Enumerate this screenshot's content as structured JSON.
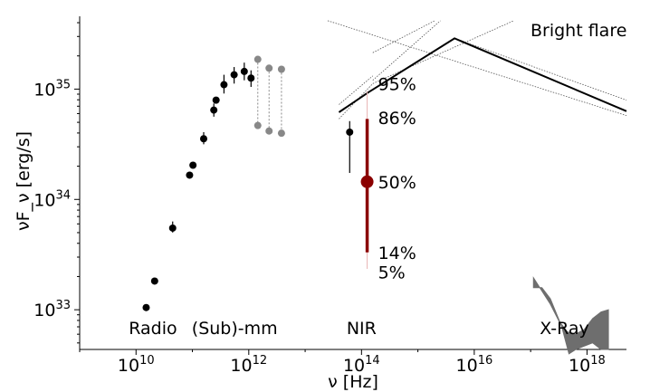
{
  "chart_data": {
    "type": "scatter",
    "xlabel": "ν [Hz]",
    "ylabel": "νF_ν [erg/s]",
    "x_scale": "log",
    "y_scale": "log",
    "xlim_log10": [
      9,
      18.7
    ],
    "ylim_log10": [
      32.64,
      35.66
    ],
    "x_ticks": [
      {
        "base": "10",
        "exp": "10",
        "v": 10
      },
      {
        "base": "10",
        "exp": "12",
        "v": 12
      },
      {
        "base": "10",
        "exp": "14",
        "v": 14
      },
      {
        "base": "10",
        "exp": "16",
        "v": 16
      },
      {
        "base": "10",
        "exp": "18",
        "v": 18
      }
    ],
    "y_ticks": [
      {
        "base": "10",
        "exp": "33",
        "v": 33
      },
      {
        "base": "10",
        "exp": "34",
        "v": 34
      },
      {
        "base": "10",
        "exp": "35",
        "v": 35
      }
    ],
    "region_labels": [
      {
        "text": "Radio",
        "x": 10.3
      },
      {
        "text": "(Sub)-mm",
        "x": 11.75
      },
      {
        "text": "NIR",
        "x": 14.0
      },
      {
        "text": "X-Ray",
        "x": 17.6
      }
    ],
    "series": [
      {
        "kind": "points",
        "color": "#000000",
        "points": [
          {
            "x": 10.18,
            "y": 33.02
          },
          {
            "x": 10.33,
            "y": 33.26
          },
          {
            "x": 10.65,
            "y": 33.74,
            "err": [
              33.7,
              33.8
            ]
          },
          {
            "x": 10.95,
            "y": 34.22
          },
          {
            "x": 11.01,
            "y": 34.31
          },
          {
            "x": 11.2,
            "y": 34.55,
            "err": [
              34.5,
              34.61
            ]
          },
          {
            "x": 11.38,
            "y": 34.81,
            "err": [
              34.75,
              34.87
            ]
          },
          {
            "x": 11.42,
            "y": 34.9
          },
          {
            "x": 11.56,
            "y": 35.04,
            "err": [
              34.96,
              35.13
            ]
          },
          {
            "x": 11.74,
            "y": 35.13,
            "err": [
              35.05,
              35.2
            ]
          },
          {
            "x": 11.92,
            "y": 35.16,
            "err": [
              35.08,
              35.24
            ]
          },
          {
            "x": 12.04,
            "y": 35.1,
            "err": [
              35.02,
              35.17
            ]
          }
        ]
      },
      {
        "kind": "ranges",
        "color": "#888888",
        "points": [
          {
            "x": 12.16,
            "low": 34.67,
            "high": 35.27
          },
          {
            "x": 12.36,
            "low": 34.62,
            "high": 35.19
          },
          {
            "x": 12.58,
            "low": 34.6,
            "high": 35.18
          }
        ]
      },
      {
        "kind": "points",
        "color": "#000000",
        "points": [
          {
            "x": 13.79,
            "y": 34.61,
            "err": [
              34.24,
              34.71
            ]
          }
        ]
      }
    ],
    "flux_distribution": {
      "x": 14.1,
      "color": "#8b0000",
      "median": 34.16,
      "ranges": [
        {
          "low": 33.52,
          "high": 34.73
        },
        {
          "low": 33.37,
          "high": 34.98
        }
      ],
      "percentile_labels": [
        {
          "text": "95%",
          "y": 35.05
        },
        {
          "text": "86%",
          "y": 34.74
        },
        {
          "text": "50%",
          "y": 34.16
        },
        {
          "text": "14%",
          "y": 33.52
        },
        {
          "text": "5%",
          "y": 33.34
        }
      ]
    },
    "bright_flare": {
      "label": "Bright flare",
      "line": [
        [
          13.6,
          34.79
        ],
        [
          14.12,
          34.97
        ],
        [
          15.65,
          35.46
        ],
        [
          18.7,
          34.8
        ]
      ],
      "dotted_lines": [
        [
          [
            13.4,
            35.62
          ],
          [
            18.7,
            34.76
          ]
        ],
        [
          [
            14.2,
            35.33
          ],
          [
            15.3,
            35.62
          ]
        ],
        [
          [
            14.2,
            35.05
          ],
          [
            16.7,
            35.62
          ]
        ],
        [
          [
            14.2,
            35.08
          ],
          [
            15.4,
            35.62
          ]
        ],
        [
          [
            15.65,
            35.46
          ],
          [
            18.7,
            34.9
          ]
        ],
        [
          [
            13.6,
            34.73
          ],
          [
            14.2,
            35.05
          ]
        ],
        [
          [
            13.6,
            34.86
          ],
          [
            14.2,
            35.12
          ]
        ]
      ],
      "dotted_color": "#555555"
    },
    "xray_band": {
      "color": "#6e6e6e",
      "upper": [
        [
          17.05,
          33.29
        ],
        [
          17.35,
          33.05
        ],
        [
          17.5,
          32.9
        ],
        [
          17.65,
          32.8
        ],
        [
          17.8,
          32.78
        ],
        [
          17.95,
          32.82
        ],
        [
          18.1,
          32.92
        ],
        [
          18.25,
          32.98
        ],
        [
          18.38,
          33.0
        ]
      ],
      "lower": [
        [
          18.38,
          32.64
        ],
        [
          18.25,
          32.64
        ],
        [
          18.1,
          32.7
        ],
        [
          17.95,
          32.67
        ],
        [
          17.8,
          32.64
        ],
        [
          17.68,
          32.6
        ],
        [
          17.55,
          32.85
        ],
        [
          17.35,
          33.1
        ],
        [
          17.2,
          33.2
        ],
        [
          17.05,
          33.2
        ]
      ]
    }
  }
}
